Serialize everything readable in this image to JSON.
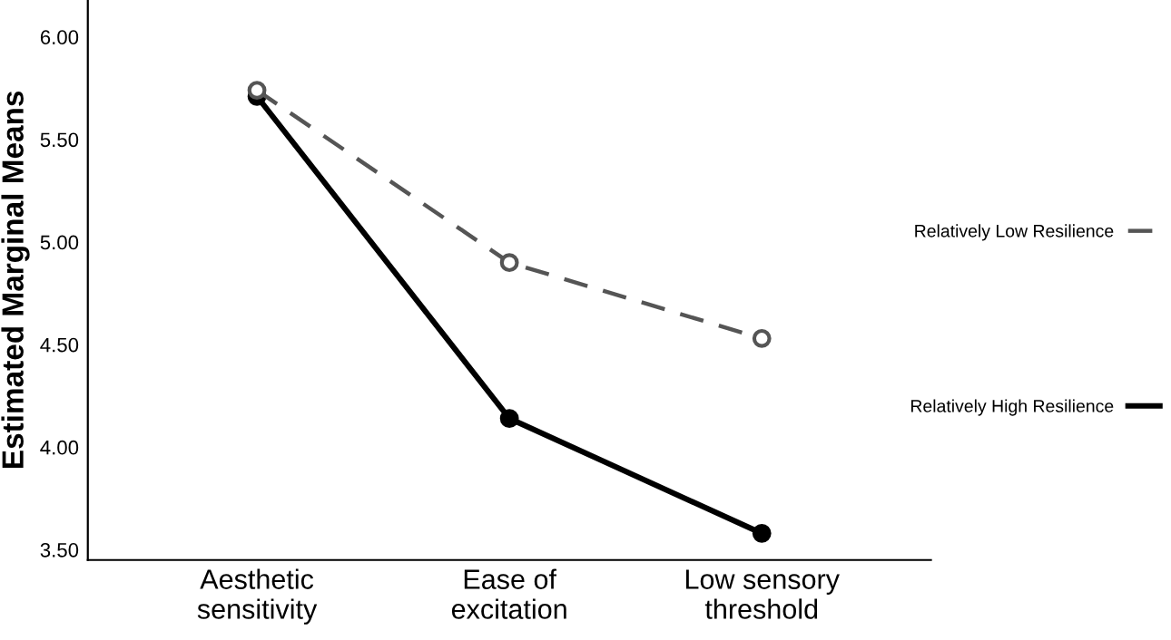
{
  "chart_data": {
    "type": "line",
    "ylabel": "Estimated Marginal Means",
    "categories": [
      "Aesthetic\nsensitivity",
      "Ease of\nexcitation",
      "Low sensory\nthreshold"
    ],
    "series": [
      {
        "name": "Relatively Low Resilience",
        "color": "#555555",
        "values": [
          5.74,
          4.9,
          4.53
        ],
        "line_style": "dashed"
      },
      {
        "name": "Relatively High Resilience",
        "color": "#000000",
        "values": [
          5.71,
          4.14,
          3.58
        ],
        "line_style": "solid"
      }
    ],
    "ylim": [
      3.45,
      6.18
    ],
    "yticks": [
      {
        "value": 3.5,
        "label": "3.50"
      },
      {
        "value": 4.0,
        "label": "4.00"
      },
      {
        "value": 4.5,
        "label": "4.50"
      },
      {
        "value": 5.0,
        "label": "5.00"
      },
      {
        "value": 5.5,
        "label": "5.50"
      },
      {
        "value": 6.0,
        "label": "6.00"
      }
    ],
    "marker": "circle",
    "grid": false,
    "legend": "right"
  }
}
